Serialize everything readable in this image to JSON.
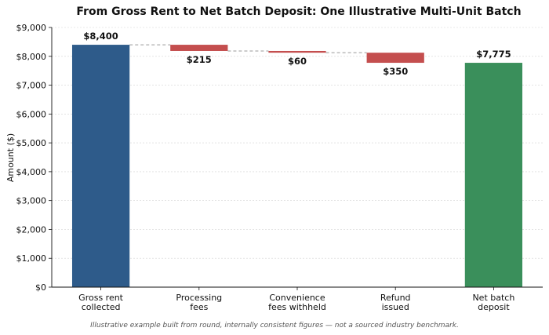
{
  "chart_data": {
    "type": "bar",
    "subtype": "waterfall",
    "title": "From Gross Rent to Net Batch Deposit: One Illustrative Multi-Unit Batch",
    "xlabel": "",
    "ylabel": "Amount ($)",
    "ylim": [
      0,
      9000
    ],
    "yticks": [
      "$0",
      "$1,000",
      "$2,000",
      "$3,000",
      "$4,000",
      "$5,000",
      "$6,000",
      "$7,000",
      "$8,000",
      "$9,000"
    ],
    "ytick_values": [
      0,
      1000,
      2000,
      3000,
      4000,
      5000,
      6000,
      7000,
      8000,
      9000
    ],
    "grid": true,
    "categories": [
      [
        "Gross rent",
        "collected"
      ],
      [
        "Processing",
        "fees"
      ],
      [
        "Convenience",
        "fees withheld"
      ],
      [
        "Refund",
        "issued"
      ],
      [
        "Net batch",
        "deposit"
      ]
    ],
    "steps": [
      {
        "kind": "total",
        "value": 8400,
        "label": "$8,400",
        "color": "#2e5b8a"
      },
      {
        "kind": "decrease",
        "value": 215,
        "label": "$215",
        "color": "#c44e4e"
      },
      {
        "kind": "decrease",
        "value": 60,
        "label": "$60",
        "color": "#c44e4e"
      },
      {
        "kind": "decrease",
        "value": 350,
        "label": "$350",
        "color": "#c44e4e"
      },
      {
        "kind": "total",
        "value": 7775,
        "label": "$7,775",
        "color": "#3a8f5b"
      }
    ],
    "caption": "Illustrative example built from round, internally consistent figures — not a sourced industry benchmark."
  }
}
